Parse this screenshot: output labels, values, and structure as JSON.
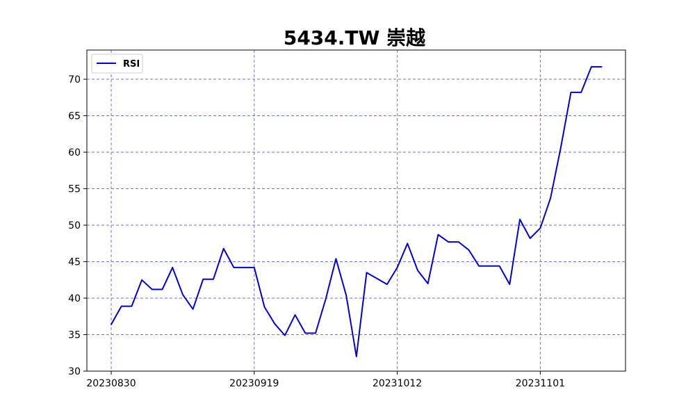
{
  "chart_data": {
    "type": "line",
    "title": "5434.TW 崇越",
    "xlabel": "",
    "ylabel": "",
    "ylim": [
      30,
      74
    ],
    "yticks": [
      30,
      35,
      40,
      45,
      50,
      55,
      60,
      65,
      70
    ],
    "xtick_labels": [
      {
        "label": "20230830",
        "index": 0
      },
      {
        "label": "20230919",
        "index": 14
      },
      {
        "label": "20231012",
        "index": 28
      },
      {
        "label": "20231101",
        "index": 42
      }
    ],
    "grid": true,
    "legend_position": "top-left",
    "series": [
      {
        "name": "RSI",
        "color": "#0000dd",
        "values": [
          36.4,
          38.9,
          38.9,
          42.5,
          41.2,
          41.2,
          44.2,
          40.5,
          38.5,
          42.6,
          42.6,
          46.8,
          44.2,
          44.2,
          44.2,
          38.8,
          36.5,
          34.9,
          37.7,
          35.2,
          35.2,
          39.9,
          45.4,
          40.4,
          32.0,
          43.5,
          42.7,
          41.9,
          44.2,
          47.5,
          43.8,
          42.0,
          48.7,
          47.7,
          47.7,
          46.6,
          44.4,
          44.4,
          44.4,
          41.9,
          50.8,
          48.2,
          49.6,
          53.7,
          60.6,
          68.2,
          68.2,
          71.7,
          71.7
        ]
      }
    ],
    "colors": {
      "line": "#0000dd",
      "grid": "#6f6fe0"
    }
  }
}
